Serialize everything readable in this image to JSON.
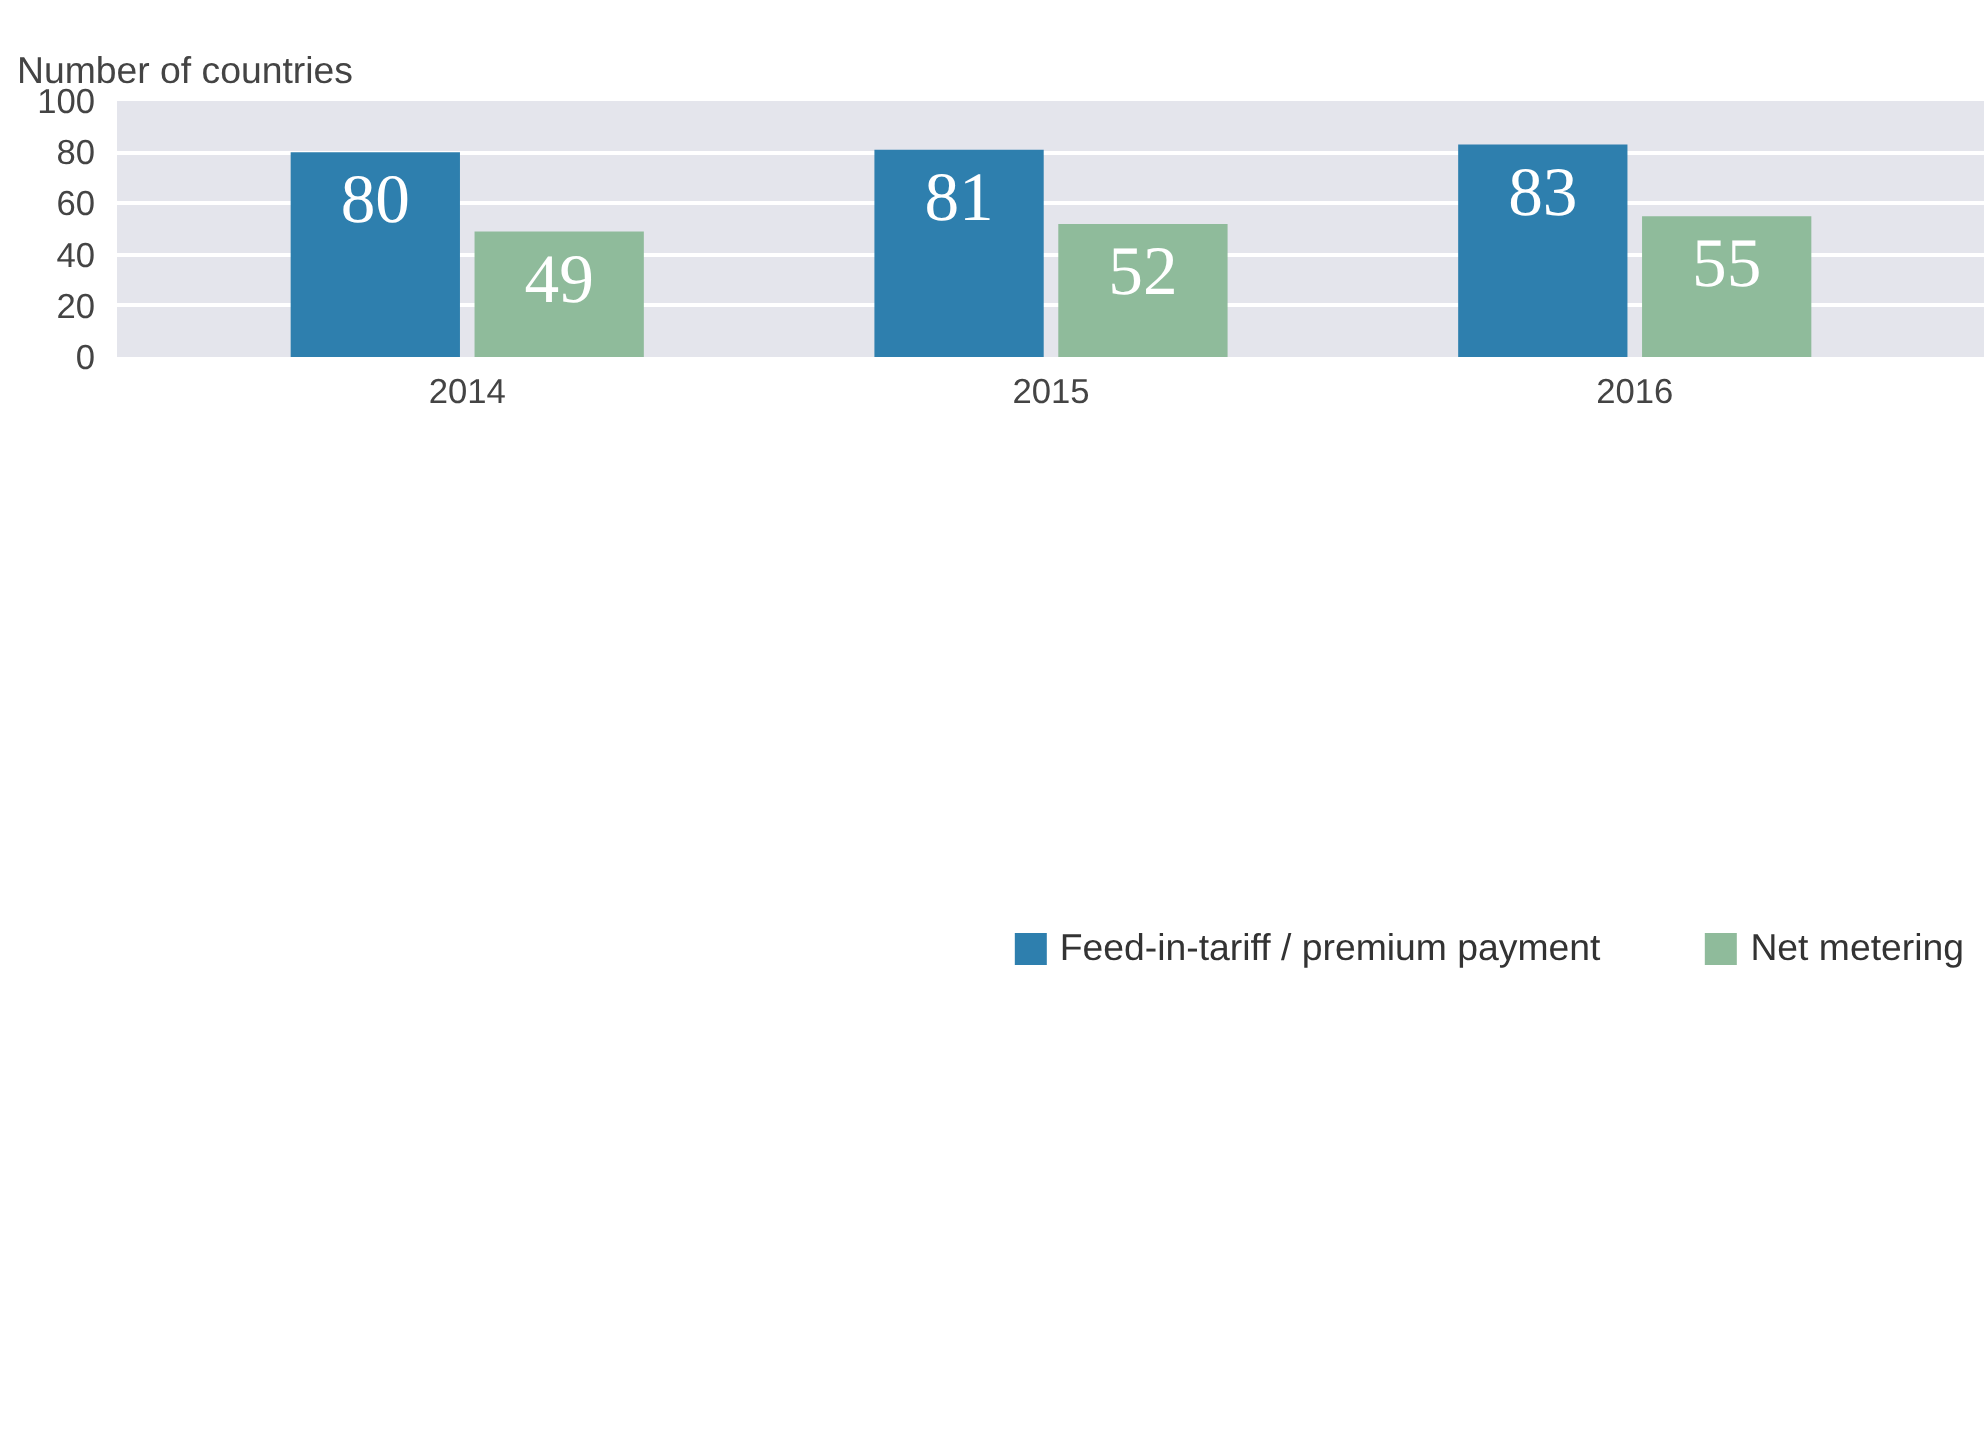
{
  "chart_data": {
    "type": "bar",
    "ylabel": "Number of countries",
    "categories": [
      "2014",
      "2015",
      "2016"
    ],
    "series": [
      {
        "name": "Feed-in-tariff / premium payment",
        "color": "#2e7fae",
        "values": [
          80,
          81,
          83
        ]
      },
      {
        "name": "Net metering",
        "color": "#8fbb9b",
        "values": [
          49,
          52,
          55
        ]
      }
    ],
    "ylim": [
      0,
      100
    ],
    "yticks": [
      0,
      20,
      40,
      60,
      80,
      100
    ],
    "grid": "y",
    "legend": "bottom",
    "data_labels": true
  }
}
